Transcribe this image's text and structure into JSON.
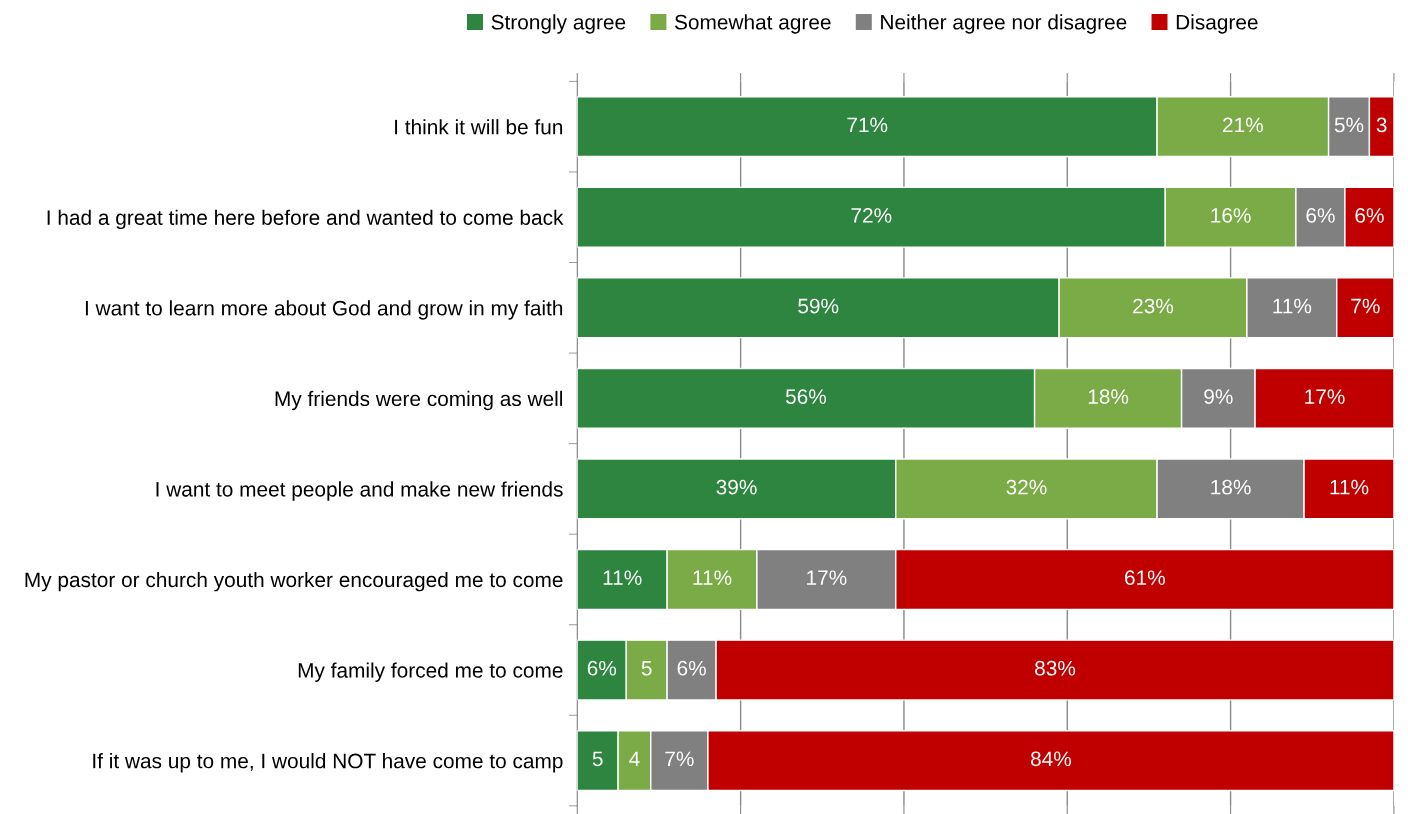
{
  "chart_data": {
    "type": "bar",
    "orientation": "horizontal",
    "stacked": true,
    "categories": [
      "I think it will be fun",
      "I had a great time here before and wanted to come back",
      "I want to learn more about God and grow in my faith",
      "My friends were coming as well",
      "I want to meet people and make new friends",
      "My pastor or church youth worker encouraged me to come",
      "My family forced me to come",
      "If it was up to me, I would NOT have come to camp"
    ],
    "series": [
      {
        "name": "Strongly agree",
        "color": "#2e8540",
        "values": [
          71,
          72,
          59,
          56,
          39,
          11,
          6,
          5
        ],
        "value_labels": [
          "71%",
          "72%",
          "59%",
          "56%",
          "39%",
          "11%",
          "6%",
          "5"
        ]
      },
      {
        "name": "Somewhat agree",
        "color": "#7aab46",
        "values": [
          21,
          16,
          23,
          18,
          32,
          11,
          5,
          4
        ],
        "value_labels": [
          "21%",
          "16%",
          "23%",
          "18%",
          "32%",
          "11%",
          "5",
          "4"
        ]
      },
      {
        "name": "Neither agree nor disagree",
        "color": "#808080",
        "values": [
          5,
          6,
          11,
          9,
          18,
          17,
          6,
          7
        ],
        "value_labels": [
          "5%",
          "6%",
          "11%",
          "9%",
          "18%",
          "17%",
          "6%",
          "7%"
        ]
      },
      {
        "name": "Disagree",
        "color": "#c00000",
        "values": [
          3,
          6,
          7,
          17,
          11,
          61,
          83,
          84
        ],
        "value_labels": [
          "3",
          "6%",
          "7%",
          "17%",
          "11%",
          "61%",
          "83%",
          "84%"
        ]
      }
    ],
    "xlim": [
      0,
      100
    ],
    "xticks": [
      {
        "value": 0,
        "label": null
      },
      {
        "value": 20,
        "label": null
      },
      {
        "value": 40,
        "label": null
      },
      {
        "value": 60,
        "label": null
      },
      {
        "value": 80,
        "label": null
      },
      {
        "value": 100,
        "label": null
      }
    ],
    "tick_labels": "y",
    "grid": "x",
    "legend": "top"
  }
}
